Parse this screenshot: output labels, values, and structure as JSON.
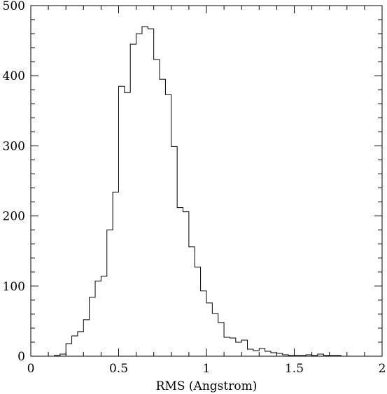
{
  "chart_data": {
    "type": "histogram",
    "xlabel": "RMS (Angstrom)",
    "ylabel": "",
    "xlim": [
      0,
      2
    ],
    "ylim": [
      0,
      500
    ],
    "x_ticks": [
      "0",
      "0.5",
      "1",
      "1.5",
      "2"
    ],
    "y_ticks": [
      "0",
      "100",
      "200",
      "300",
      "400",
      "500"
    ],
    "grid": false,
    "bin_width": 0.03333,
    "bin_start": 0.1333,
    "values": [
      1,
      3,
      18,
      29,
      35,
      52,
      84,
      107,
      114,
      180,
      234,
      385,
      376,
      445,
      460,
      470,
      467,
      423,
      395,
      373,
      299,
      212,
      206,
      156,
      127,
      93,
      76,
      61,
      48,
      27,
      26,
      20,
      23,
      10,
      8,
      11,
      7,
      5,
      4,
      2,
      1,
      1,
      1,
      2,
      1,
      3,
      1,
      1,
      1
    ]
  }
}
